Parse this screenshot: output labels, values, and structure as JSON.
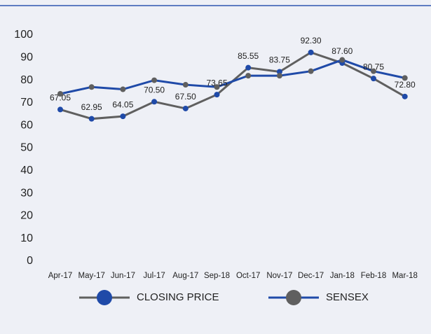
{
  "chart_data": {
    "type": "line",
    "categories": [
      "Apr-17",
      "May-17",
      "Jun-17",
      "Jul-17",
      "Aug-17",
      "Sep-18",
      "Oct-17",
      "Nov-17",
      "Dec-17",
      "Jan-18",
      "Feb-18",
      "Mar-18"
    ],
    "series": [
      {
        "name": "CLOSING PRICE",
        "color": "#5f5f5f",
        "marker_color": "#1f4aa8",
        "values": [
          67.05,
          62.95,
          64.05,
          70.5,
          67.5,
          73.65,
          85.55,
          83.75,
          92.3,
          87.6,
          80.75,
          72.8
        ],
        "value_labels": [
          "67.05",
          "62.95",
          "64.05",
          "70.50",
          "67.50",
          "73.65",
          "85.55",
          "83.75",
          "92.30",
          "87.60",
          "80.75",
          "72.80"
        ]
      },
      {
        "name": "SENSEX",
        "color": "#1f4aa8",
        "marker_color": "#5f5f5f",
        "values": [
          74,
          77,
          76,
          80,
          78,
          77,
          82,
          82,
          84,
          89,
          84,
          81
        ]
      }
    ],
    "ylim": [
      0,
      100
    ],
    "yticks": [
      0,
      10,
      20,
      30,
      40,
      50,
      60,
      70,
      80,
      90,
      100
    ],
    "grid": false
  }
}
